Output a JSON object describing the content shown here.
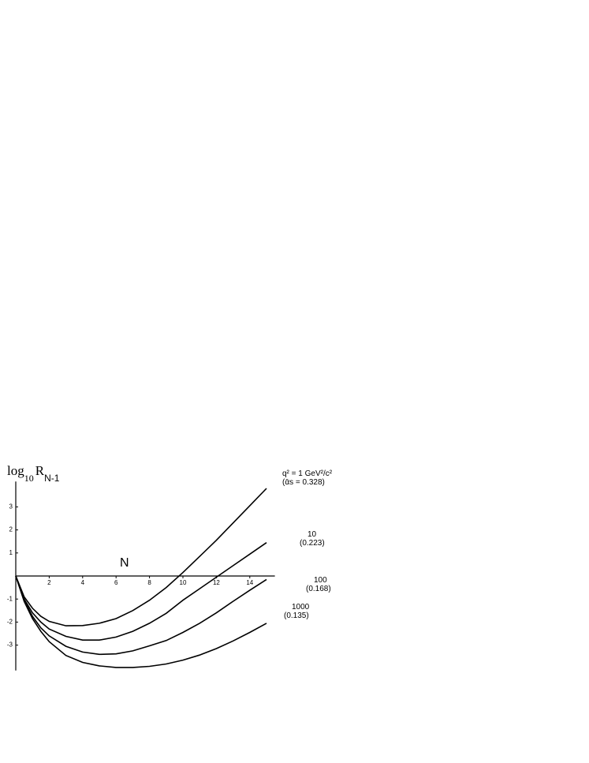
{
  "chart_data": {
    "type": "line",
    "y_label": [
      "log",
      "10",
      "R",
      "N-1"
    ],
    "x_label": "N",
    "x": [
      0,
      0.5,
      1,
      1.5,
      2,
      3,
      4,
      5,
      6,
      7,
      8,
      9,
      10,
      11,
      12,
      13,
      14,
      15
    ],
    "series": [
      {
        "name": "q² = 1 GeV²/c²",
        "note": "(ᾱs = 0.328)",
        "color": "#000000",
        "values": [
          0,
          -0.9,
          -1.4,
          -1.75,
          -1.97,
          -2.16,
          -2.15,
          -2.05,
          -1.85,
          -1.5,
          -1.05,
          -0.5,
          0.15,
          0.85,
          1.55,
          2.3,
          3.05,
          3.8
        ]
      },
      {
        "name": "10",
        "note": "(0.223)",
        "color": "#000000",
        "values": [
          0,
          -1.0,
          -1.6,
          -2.0,
          -2.3,
          -2.62,
          -2.78,
          -2.78,
          -2.65,
          -2.4,
          -2.05,
          -1.62,
          -1.05,
          -0.55,
          -0.05,
          0.45,
          0.95,
          1.45
        ]
      },
      {
        "name": "100",
        "note": "(0.168)",
        "color": "#000000",
        "values": [
          0,
          -1.05,
          -1.75,
          -2.25,
          -2.6,
          -3.05,
          -3.3,
          -3.4,
          -3.38,
          -3.25,
          -3.03,
          -2.8,
          -2.45,
          -2.05,
          -1.6,
          -1.1,
          -0.62,
          -0.15
        ]
      },
      {
        "name": "1000",
        "note": "(0.135)",
        "color": "#000000",
        "values": [
          0,
          -1.1,
          -1.85,
          -2.4,
          -2.85,
          -3.45,
          -3.75,
          -3.9,
          -3.97,
          -3.97,
          -3.92,
          -3.82,
          -3.65,
          -3.43,
          -3.15,
          -2.82,
          -2.45,
          -2.05
        ]
      }
    ],
    "xlim": [
      0,
      15.5
    ],
    "ylim": [
      -4.1,
      4.1
    ],
    "xticks": [
      2,
      4,
      6,
      8,
      10,
      12,
      14
    ],
    "yticks": [
      -3,
      -2,
      -1,
      1,
      2,
      3
    ]
  }
}
